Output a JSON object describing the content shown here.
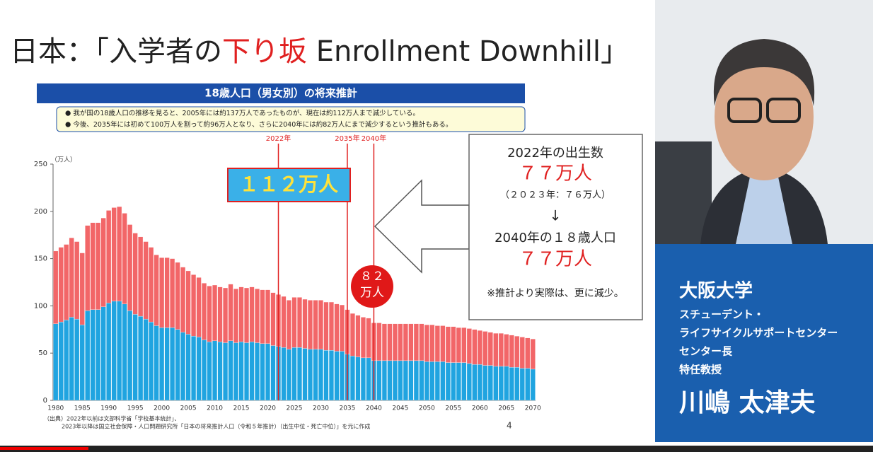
{
  "slide": {
    "title_parts": [
      "日本：「入学者の",
      "下り坂",
      " Enrollment Downhill」"
    ],
    "bullets": [
      "我が国の18歳人口の推移を見ると、2005年には約137万人であったものが、現在は約112万人まで減少している。",
      "今後、2035年には初めて100万人を割って約96万人となり、さらに2040年には約82万人にまで減少するという推計もある。"
    ],
    "callout_main": "１１２万人",
    "callout_circle": [
      "８２",
      "万人"
    ],
    "info_box": [
      "2022年の出生数",
      "７７万人",
      "（２０２３年：７６万人）",
      "↓",
      "2040年の１８歳人口",
      "７７万人",
      "※推計より実際は、更に減少。"
    ],
    "sources": [
      "（出典）2022年以前は文部科学省「学校基本統計」、",
      "2023年以降は国立社会保障・人口問題研究所「日本の将来推計人口（令和５年推計）（出生中位・死亡中位）」を元に作成"
    ],
    "page_number": "4"
  },
  "presenter": {
    "affiliation": "大阪大学",
    "roles": [
      "スチューデント・",
      "ライフサイクルサポートセンター",
      "センター長",
      "特任教授"
    ],
    "name": "川嶋 太津夫"
  },
  "chart_data": {
    "type": "stacked_bar",
    "title": "18歳人口（男女別）の将来推計",
    "ylabel": "（万人）",
    "categories": [
      "1980",
      null,
      null,
      null,
      null,
      "1985",
      null,
      null,
      null,
      null,
      "1990",
      null,
      null,
      null,
      null,
      "1995",
      null,
      null,
      null,
      null,
      "2000",
      null,
      null,
      null,
      null,
      "2005",
      null,
      null,
      null,
      null,
      "2010",
      null,
      null,
      null,
      null,
      "2015",
      null,
      null,
      null,
      null,
      "2020",
      null,
      null,
      null,
      null,
      "2025",
      null,
      null,
      null,
      null,
      "2030",
      null,
      null,
      null,
      null,
      "2035",
      null,
      null,
      null,
      null,
      "2040",
      null,
      null,
      null,
      null,
      "2045",
      null,
      null,
      null,
      null,
      "2050",
      null,
      null,
      null,
      null,
      "2055",
      null,
      null,
      null,
      null,
      "2060",
      null,
      null,
      null,
      null,
      "2065",
      null,
      null,
      null,
      null,
      "2070"
    ],
    "series": [
      {
        "color": "#20a4e0",
        "values": [
          81,
          83,
          85,
          88,
          86,
          80,
          95,
          96,
          96,
          99,
          103,
          105,
          105,
          102,
          95,
          91,
          89,
          86,
          83,
          79,
          77,
          77,
          77,
          75,
          72,
          70,
          68,
          67,
          64,
          62,
          63,
          62,
          61,
          63,
          61,
          62,
          61,
          62,
          61,
          60,
          60,
          58,
          57,
          56,
          54,
          56,
          56,
          55,
          54,
          54,
          54,
          53,
          53,
          52,
          52,
          49,
          47,
          46,
          45,
          45,
          42,
          42,
          42,
          42,
          42,
          42,
          42,
          42,
          42,
          42,
          41,
          41,
          41,
          41,
          40,
          40,
          40,
          40,
          39,
          38,
          38,
          37,
          37,
          36,
          36,
          36,
          35,
          35,
          34,
          34,
          33
        ]
      },
      {
        "color": "#f26668",
        "values": [
          77,
          79,
          80,
          84,
          82,
          76,
          90,
          92,
          92,
          94,
          98,
          99,
          100,
          96,
          91,
          86,
          84,
          82,
          79,
          75,
          74,
          74,
          73,
          71,
          69,
          67,
          65,
          63,
          60,
          59,
          59,
          58,
          58,
          60,
          57,
          58,
          58,
          58,
          57,
          57,
          57,
          56,
          55,
          54,
          52,
          53,
          53,
          52,
          52,
          52,
          52,
          51,
          51,
          50,
          49,
          47,
          45,
          44,
          43,
          42,
          40,
          40,
          39,
          39,
          39,
          39,
          39,
          39,
          39,
          39,
          39,
          39,
          38,
          38,
          38,
          38,
          37,
          37,
          37,
          37,
          36,
          36,
          35,
          35,
          35,
          34,
          34,
          33,
          33,
          32,
          32
        ]
      }
    ],
    "ylim": [
      0,
      250
    ],
    "yticks": [
      0,
      50,
      100,
      150,
      200,
      250
    ],
    "markers": [
      {
        "value": 2022,
        "label": "2022年"
      },
      {
        "value": 2035,
        "label": "2035年"
      },
      {
        "value": 2040,
        "label": "2040年"
      }
    ],
    "marker_color": "#e02020"
  }
}
